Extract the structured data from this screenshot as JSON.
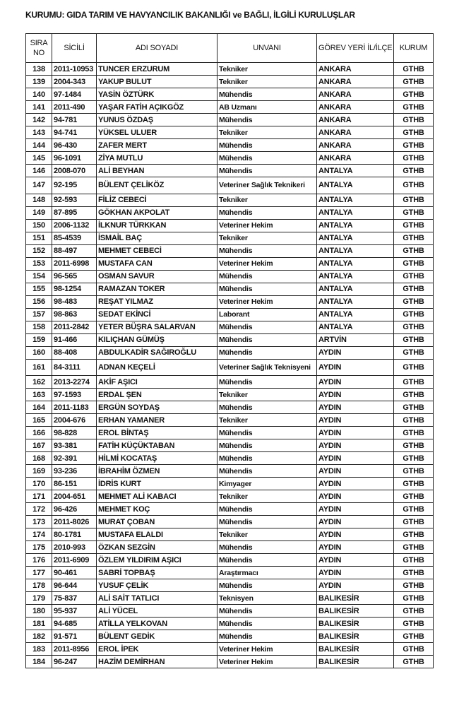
{
  "title": "KURUMU: GIDA TARIM VE HAVYANCILIK BAKANLIĞI ve BAĞLI, İLGİLİ KURULUŞLAR",
  "headers": {
    "sira": "SIRA NO",
    "sicil": "SİCİLİ",
    "adi": "ADI SOYADI",
    "unvan": "UNVANI",
    "gorev": "GÖREV YERİ İL/İLÇE",
    "kurum": "KURUM"
  },
  "rows": [
    [
      "138",
      "2011-10953",
      "TUNCER ERZURUM",
      "Tekniker",
      "ANKARA",
      "GTHB"
    ],
    [
      "139",
      "2004-343",
      "YAKUP BULUT",
      "Tekniker",
      "ANKARA",
      "GTHB"
    ],
    [
      "140",
      "97-1484",
      "YASİN ÖZTÜRK",
      "Mühendis",
      "ANKARA",
      "GTHB"
    ],
    [
      "141",
      "2011-490",
      "YAŞAR FATİH AÇIKGÖZ",
      "AB Uzmanı",
      "ANKARA",
      "GTHB"
    ],
    [
      "142",
      "94-781",
      "YUNUS ÖZDAŞ",
      "Mühendis",
      "ANKARA",
      "GTHB"
    ],
    [
      "143",
      "94-741",
      "YÜKSEL ULUER",
      "Tekniker",
      "ANKARA",
      "GTHB"
    ],
    [
      "144",
      "96-430",
      "ZAFER MERT",
      "Mühendis",
      "ANKARA",
      "GTHB"
    ],
    [
      "145",
      "96-1091",
      "ZİYA MUTLU",
      "Mühendis",
      "ANKARA",
      "GTHB"
    ],
    [
      "146",
      "2008-070",
      "ALİ BEYHAN",
      "Mühendis",
      "ANTALYA",
      "GTHB"
    ],
    [
      "147",
      "92-195",
      "BÜLENT ÇELİKÖZ",
      "Veteriner Sağlık Teknikeri",
      "ANTALYA",
      "GTHB"
    ],
    [
      "148",
      "92-593",
      "FİLİZ CEBECİ",
      "Tekniker",
      "ANTALYA",
      "GTHB"
    ],
    [
      "149",
      "87-895",
      "GÖKHAN AKPOLAT",
      "Mühendis",
      "ANTALYA",
      "GTHB"
    ],
    [
      "150",
      "2006-1132",
      "İLKNUR TÜRKKAN",
      "Veteriner Hekim",
      "ANTALYA",
      "GTHB"
    ],
    [
      "151",
      "85-4539",
      "İSMAİL BAÇ",
      "Tekniker",
      "ANTALYA",
      "GTHB"
    ],
    [
      "152",
      "88-497",
      "MEHMET CEBECİ",
      "Mühendis",
      "ANTALYA",
      "GTHB"
    ],
    [
      "153",
      "2011-6998",
      "MUSTAFA CAN",
      "Veteriner Hekim",
      "ANTALYA",
      "GTHB"
    ],
    [
      "154",
      "96-565",
      "OSMAN SAVUR",
      "Mühendis",
      "ANTALYA",
      "GTHB"
    ],
    [
      "155",
      "98-1254",
      "RAMAZAN TOKER",
      "Mühendis",
      "ANTALYA",
      "GTHB"
    ],
    [
      "156",
      "98-483",
      "REŞAT YILMAZ",
      "Veteriner Hekim",
      "ANTALYA",
      "GTHB"
    ],
    [
      "157",
      "98-863",
      "SEDAT EKİNCİ",
      "Laborant",
      "ANTALYA",
      "GTHB"
    ],
    [
      "158",
      "2011-2842",
      "YETER BÜŞRA SALARVAN",
      "Mühendis",
      "ANTALYA",
      "GTHB"
    ],
    [
      "159",
      "91-466",
      "KILIÇHAN GÜMÜŞ",
      "Mühendis",
      "ARTVİN",
      "GTHB"
    ],
    [
      "160",
      "88-408",
      "ABDULKADİR SAĞIROĞLU",
      "Mühendis",
      "AYDIN",
      "GTHB"
    ],
    [
      "161",
      "84-3111",
      "ADNAN KEÇELİ",
      "Veteriner Sağlık Teknisyeni",
      "AYDIN",
      "GTHB"
    ],
    [
      "162",
      "2013-2274",
      "AKİF AŞICI",
      "Mühendis",
      "AYDIN",
      "GTHB"
    ],
    [
      "163",
      "97-1593",
      "ERDAL ŞEN",
      "Tekniker",
      "AYDIN",
      "GTHB"
    ],
    [
      "164",
      "2011-1183",
      "ERGÜN SOYDAŞ",
      "Mühendis",
      "AYDIN",
      "GTHB"
    ],
    [
      "165",
      "2004-676",
      "ERHAN YAMANER",
      "Tekniker",
      "AYDIN",
      "GTHB"
    ],
    [
      "166",
      "98-828",
      "EROL BİNTAŞ",
      "Mühendis",
      "AYDIN",
      "GTHB"
    ],
    [
      "167",
      "93-381",
      "FATİH KÜÇÜKTABAN",
      "Mühendis",
      "AYDIN",
      "GTHB"
    ],
    [
      "168",
      "92-391",
      "HİLMİ KOCATAŞ",
      "Mühendis",
      "AYDIN",
      "GTHB"
    ],
    [
      "169",
      "93-236",
      "İBRAHİM ÖZMEN",
      "Mühendis",
      "AYDIN",
      "GTHB"
    ],
    [
      "170",
      "86-151",
      "İDRİS KURT",
      "Kimyager",
      "AYDIN",
      "GTHB"
    ],
    [
      "171",
      "2004-651",
      "MEHMET ALİ KABACI",
      "Tekniker",
      "AYDIN",
      "GTHB"
    ],
    [
      "172",
      "96-426",
      "MEHMET KOÇ",
      "Mühendis",
      "AYDIN",
      "GTHB"
    ],
    [
      "173",
      "2011-8026",
      "MURAT ÇOBAN",
      "Mühendis",
      "AYDIN",
      "GTHB"
    ],
    [
      "174",
      "80-1781",
      "MUSTAFA ELALDI",
      "Tekniker",
      "AYDIN",
      "GTHB"
    ],
    [
      "175",
      "2010-993",
      "ÖZKAN SEZGİN",
      "Mühendis",
      "AYDIN",
      "GTHB"
    ],
    [
      "176",
      "2011-6909",
      "ÖZLEM YILDIRIM AŞICI",
      "Mühendis",
      "AYDIN",
      "GTHB"
    ],
    [
      "177",
      "90-461",
      "SABRİ TOPBAŞ",
      "Araştırmacı",
      "AYDIN",
      "GTHB"
    ],
    [
      "178",
      "96-644",
      "YUSUF ÇELİK",
      "Mühendis",
      "AYDIN",
      "GTHB"
    ],
    [
      "179",
      "75-837",
      "ALİ SAİT TATLICI",
      "Teknisyen",
      "BALIKESİR",
      "GTHB"
    ],
    [
      "180",
      "95-937",
      "ALİ YÜCEL",
      "Mühendis",
      "BALIKESİR",
      "GTHB"
    ],
    [
      "181",
      "94-685",
      "ATİLLA YELKOVAN",
      "Mühendis",
      "BALIKESİR",
      "GTHB"
    ],
    [
      "182",
      "91-571",
      "BÜLENT GEDİK",
      "Mühendis",
      "BALIKESİR",
      "GTHB"
    ],
    [
      "183",
      "2011-8956",
      "EROL İPEK",
      "Veteriner Hekim",
      "BALIKESİR",
      "GTHB"
    ],
    [
      "184",
      "96-247",
      "HAZİM DEMİRHAN",
      "Veteriner Hekim",
      "BALIKESİR",
      "GTHB"
    ]
  ]
}
